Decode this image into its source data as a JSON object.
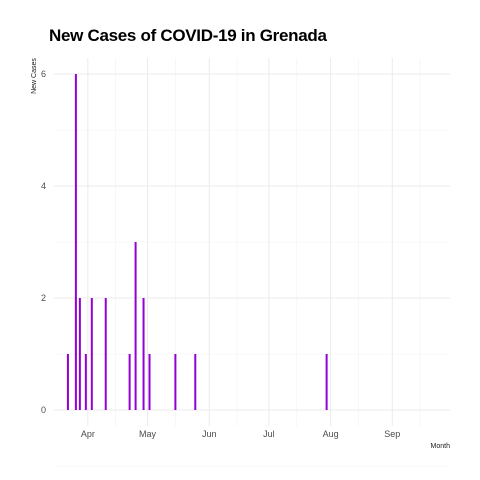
{
  "chart_data": {
    "type": "bar",
    "title": "New Cases of COVID-19 in Grenada",
    "xlabel": "Month",
    "ylabel": "New Cases",
    "x_axis_type": "date",
    "xlim": [
      "2020-03-15",
      "2020-09-30"
    ],
    "ylim": [
      0,
      6
    ],
    "y_ticks": [
      0,
      2,
      4,
      6
    ],
    "x_ticks": [
      {
        "date": "2020-04-01",
        "label": "Apr"
      },
      {
        "date": "2020-05-01",
        "label": "May"
      },
      {
        "date": "2020-06-01",
        "label": "Jun"
      },
      {
        "date": "2020-07-01",
        "label": "Jul"
      },
      {
        "date": "2020-08-01",
        "label": "Aug"
      },
      {
        "date": "2020-09-01",
        "label": "Sep"
      }
    ],
    "x_minor_ticks": [
      "2020-04-15",
      "2020-05-15",
      "2020-06-15",
      "2020-07-15",
      "2020-08-15",
      "2020-09-15"
    ],
    "grid": true,
    "legend": "none",
    "bar_color": "#9400d3",
    "points": [
      {
        "date": "2020-03-22",
        "value": 1
      },
      {
        "date": "2020-03-26",
        "value": 6
      },
      {
        "date": "2020-03-28",
        "value": 2
      },
      {
        "date": "2020-03-31",
        "value": 1
      },
      {
        "date": "2020-04-03",
        "value": 2
      },
      {
        "date": "2020-04-10",
        "value": 2
      },
      {
        "date": "2020-04-22",
        "value": 1
      },
      {
        "date": "2020-04-25",
        "value": 3
      },
      {
        "date": "2020-04-29",
        "value": 2
      },
      {
        "date": "2020-05-02",
        "value": 1
      },
      {
        "date": "2020-05-15",
        "value": 1
      },
      {
        "date": "2020-05-25",
        "value": 1
      },
      {
        "date": "2020-07-30",
        "value": 1
      }
    ]
  }
}
